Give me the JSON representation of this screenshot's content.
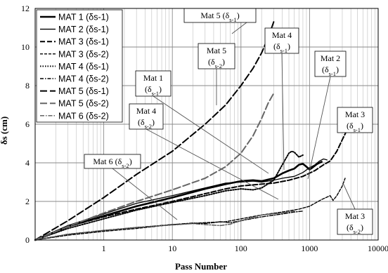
{
  "chart_data": {
    "type": "line",
    "xlabel": "Pass Number",
    "ylabel": "δs (cm)",
    "x_scale": "log",
    "xlim": [
      0.1,
      10000
    ],
    "ylim": [
      0,
      12
    ],
    "x_ticks": [
      {
        "value": 1,
        "label": "1"
      },
      {
        "value": 10,
        "label": "10"
      },
      {
        "value": 100,
        "label": "100"
      },
      {
        "value": 1000,
        "label": "1000"
      },
      {
        "value": 10000,
        "label": "10000"
      }
    ],
    "y_ticks": [
      {
        "value": 0,
        "label": "0"
      },
      {
        "value": 2,
        "label": "2"
      },
      {
        "value": 4,
        "label": "4"
      },
      {
        "value": 6,
        "label": "6"
      },
      {
        "value": 8,
        "label": "8"
      },
      {
        "value": 10,
        "label": "10"
      },
      {
        "value": 12,
        "label": "12"
      }
    ],
    "grid": true,
    "legend_position": "top-left",
    "series": [
      {
        "name": "MAT 1 (δs-1)",
        "color": "#000000",
        "dash": "",
        "width": 2.6,
        "points": [
          [
            0.1,
            0
          ],
          [
            0.3,
            0.7
          ],
          [
            1,
            1.25
          ],
          [
            3,
            1.75
          ],
          [
            10,
            2.2
          ],
          [
            30,
            2.65
          ],
          [
            60,
            2.9
          ],
          [
            100,
            3.05
          ],
          [
            150,
            3.1
          ],
          [
            200,
            3.05
          ],
          [
            300,
            3.2
          ],
          [
            400,
            3.45
          ],
          [
            500,
            3.6
          ],
          [
            600,
            3.7
          ],
          [
            700,
            3.9
          ],
          [
            800,
            3.95
          ],
          [
            900,
            3.8
          ],
          [
            1000,
            3.65
          ],
          [
            1100,
            3.75
          ],
          [
            1300,
            3.95
          ],
          [
            1500,
            4.05
          ]
        ]
      },
      {
        "name": "MAT 2 (δs-1)",
        "color": "#000000",
        "dash": "",
        "width": 1.3,
        "points": [
          [
            0.1,
            0
          ],
          [
            0.3,
            0.75
          ],
          [
            1,
            1.35
          ],
          [
            3,
            1.9
          ],
          [
            10,
            2.3
          ],
          [
            30,
            2.7
          ],
          [
            60,
            2.95
          ],
          [
            100,
            3.0
          ],
          [
            150,
            3.05
          ],
          [
            200,
            3.0
          ],
          [
            300,
            3.1
          ],
          [
            400,
            3.2
          ],
          [
            600,
            3.3
          ],
          [
            800,
            3.5
          ],
          [
            1000,
            3.75
          ],
          [
            1200,
            3.9
          ],
          [
            1400,
            4.1
          ],
          [
            1600,
            4.2
          ],
          [
            1800,
            4.15
          ]
        ]
      },
      {
        "name": "MAT 3 (δs-1)",
        "color": "#000000",
        "dash": "7,3",
        "width": 2,
        "points": [
          [
            0.1,
            0
          ],
          [
            0.3,
            0.7
          ],
          [
            1,
            1.2
          ],
          [
            3,
            1.6
          ],
          [
            10,
            2.0
          ],
          [
            30,
            2.4
          ],
          [
            60,
            2.65
          ],
          [
            100,
            2.8
          ],
          [
            200,
            2.9
          ],
          [
            300,
            2.95
          ],
          [
            500,
            3.1
          ],
          [
            800,
            3.3
          ],
          [
            1200,
            3.6
          ],
          [
            1600,
            3.9
          ],
          [
            2000,
            4.1
          ],
          [
            2500,
            4.6
          ],
          [
            3000,
            5.2
          ],
          [
            3300,
            5.5
          ],
          [
            3500,
            5.7
          ]
        ]
      },
      {
        "name": "MAT 3 (δs-2)",
        "color": "#000000",
        "dash": "4,2",
        "width": 1.4,
        "points": [
          [
            0.1,
            0
          ],
          [
            0.3,
            0.25
          ],
          [
            1,
            0.45
          ],
          [
            3,
            0.6
          ],
          [
            10,
            0.8
          ],
          [
            30,
            0.9
          ],
          [
            60,
            0.95
          ],
          [
            100,
            1.1
          ],
          [
            200,
            1.3
          ],
          [
            400,
            1.45
          ],
          [
            700,
            1.6
          ],
          [
            1000,
            1.75
          ],
          [
            1500,
            2.1
          ],
          [
            2000,
            2.3
          ],
          [
            2200,
            2.05
          ],
          [
            2500,
            2.3
          ],
          [
            3000,
            2.8
          ],
          [
            3300,
            3.2
          ]
        ]
      },
      {
        "name": "MAT 4 (δs-1)",
        "color": "#000000",
        "dash": "1.5,2",
        "width": 2,
        "points": [
          [
            0.1,
            0
          ],
          [
            0.3,
            0.6
          ],
          [
            1,
            1.1
          ],
          [
            3,
            1.55
          ],
          [
            10,
            1.95
          ],
          [
            30,
            2.3
          ],
          [
            60,
            2.55
          ],
          [
            100,
            2.65
          ],
          [
            150,
            2.6
          ],
          [
            200,
            2.7
          ],
          [
            300,
            3.1
          ],
          [
            400,
            3.9
          ],
          [
            500,
            4.5
          ],
          [
            550,
            4.6
          ],
          [
            600,
            4.55
          ],
          [
            700,
            4.3
          ],
          [
            800,
            4.4
          ]
        ]
      },
      {
        "name": "MAT 4 (δs-2)",
        "color": "#000000",
        "dash": "5,2,1.5,2",
        "width": 1.4,
        "points": [
          [
            0.1,
            0
          ],
          [
            0.3,
            0.3
          ],
          [
            1,
            0.5
          ],
          [
            3,
            0.65
          ],
          [
            10,
            0.8
          ],
          [
            20,
            0.88
          ],
          [
            30,
            0.85
          ],
          [
            50,
            0.95
          ],
          [
            70,
            0.9
          ],
          [
            100,
            1.0
          ],
          [
            200,
            1.2
          ],
          [
            400,
            1.35
          ],
          [
            600,
            1.45
          ],
          [
            800,
            1.5
          ]
        ]
      },
      {
        "name": "MAT 5 (δs-1)",
        "color": "#000000",
        "dash": "10,4",
        "width": 2,
        "points": [
          [
            0.1,
            0
          ],
          [
            0.3,
            1.0
          ],
          [
            1,
            2.2
          ],
          [
            3,
            3.4
          ],
          [
            10,
            4.6
          ],
          [
            30,
            6.0
          ],
          [
            60,
            7.0
          ],
          [
            100,
            8.0
          ],
          [
            150,
            8.9
          ],
          [
            200,
            9.7
          ],
          [
            250,
            10.5
          ],
          [
            300,
            11.3
          ]
        ]
      },
      {
        "name": "MAT 5 (δs-2)",
        "color": "#666666",
        "dash": "10,4",
        "width": 2,
        "points": [
          [
            0.1,
            0
          ],
          [
            0.3,
            0.7
          ],
          [
            1,
            1.4
          ],
          [
            3,
            2.0
          ],
          [
            10,
            2.6
          ],
          [
            30,
            3.2
          ],
          [
            60,
            3.8
          ],
          [
            100,
            4.5
          ],
          [
            150,
            5.4
          ],
          [
            200,
            6.3
          ],
          [
            250,
            7.1
          ],
          [
            300,
            7.6
          ]
        ]
      },
      {
        "name": "MAT 6 (δs-2)",
        "color": "#555555",
        "dash": "6,2,1.5,2",
        "width": 1.4,
        "points": [
          [
            0.1,
            0
          ],
          [
            0.3,
            0.3
          ],
          [
            1,
            0.5
          ],
          [
            3,
            0.65
          ],
          [
            10,
            0.78
          ],
          [
            20,
            0.85
          ],
          [
            30,
            0.8
          ],
          [
            50,
            0.75
          ],
          [
            70,
            0.82
          ],
          [
            100,
            1.0
          ],
          [
            200,
            1.3
          ],
          [
            400,
            1.4
          ],
          [
            600,
            1.5
          ]
        ]
      }
    ],
    "annotations": [
      {
        "lines": [
          "Mat 5 (δs-1)"
        ]
      },
      {
        "lines": [
          "Mat 5",
          "(δs-2)"
        ]
      },
      {
        "lines": [
          "Mat 4",
          "(δs-1)"
        ]
      },
      {
        "lines": [
          "Mat 2",
          "(δs-1)"
        ]
      },
      {
        "lines": [
          "Mat 1",
          "(δs-1)"
        ]
      },
      {
        "lines": [
          "Mat 3",
          "(δs-1)"
        ]
      },
      {
        "lines": [
          "Mat 4",
          "(δs-2)"
        ]
      },
      {
        "lines": [
          "Mat 6 (δs-2)"
        ]
      },
      {
        "lines": [
          "Mat 3",
          "(δs-2)"
        ]
      }
    ]
  }
}
